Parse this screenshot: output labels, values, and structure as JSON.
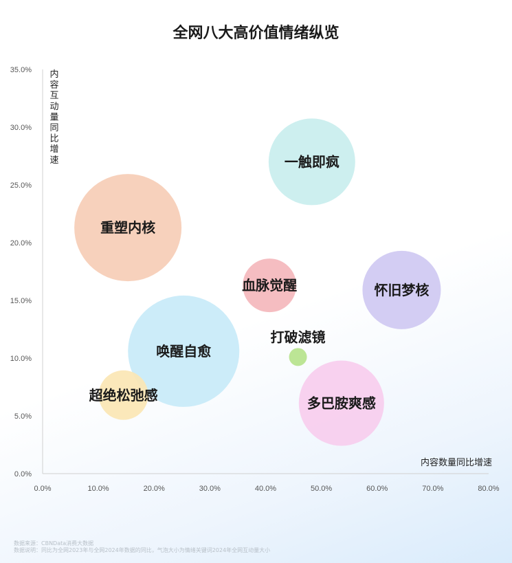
{
  "chart_data": {
    "type": "scatter",
    "title": "全网八大高价值情绪纵览",
    "xlabel": "内容数量同比增速",
    "ylabel": "内容互动量同比增速",
    "xlim": [
      0,
      80
    ],
    "ylim": [
      0,
      35
    ],
    "x_ticks": [
      "0.0%",
      "10.0%",
      "20.0%",
      "30.0%",
      "40.0%",
      "50.0%",
      "60.0%",
      "70.0%",
      "80.0%"
    ],
    "y_ticks": [
      "0.0%",
      "5.0%",
      "10.0%",
      "15.0%",
      "20.0%",
      "25.0%",
      "30.0%",
      "35.0%"
    ],
    "size_meaning": "气泡大小为情绪关键词2024年全网互动量大小",
    "points": [
      {
        "label": "一触即疯",
        "x": 48.3,
        "y": 27.0,
        "size": 63,
        "color": "#c9eeee"
      },
      {
        "label": "重塑内核",
        "x": 15.3,
        "y": 21.3,
        "size": 78,
        "color": "#f6cdb6"
      },
      {
        "label": "血脉觉醒",
        "x": 40.7,
        "y": 16.3,
        "size": 39,
        "color": "#f4b7bc"
      },
      {
        "label": "怀旧梦核",
        "x": 64.4,
        "y": 15.9,
        "size": 57,
        "color": "#cfc9f2"
      },
      {
        "label": "打破滤镜",
        "x": 45.8,
        "y": 10.1,
        "size": 13,
        "color": "#b6e38c"
      },
      {
        "label": "唤醒自愈",
        "x": 25.3,
        "y": 10.6,
        "size": 81,
        "color": "#c8eaf8"
      },
      {
        "label": "超绝松弛感",
        "x": 14.5,
        "y": 6.8,
        "size": 36,
        "color": "#fbe6b4"
      },
      {
        "label": "多巴胺爽感",
        "x": 53.6,
        "y": 6.1,
        "size": 62,
        "color": "#f7cdee"
      }
    ]
  },
  "footer": {
    "source": "数据来源：CBNData消费大数据",
    "note": "数据说明：同比为全网2023年与全网2024年数据的同比，气泡大小为情绪关键词2024年全网互动量大小"
  }
}
